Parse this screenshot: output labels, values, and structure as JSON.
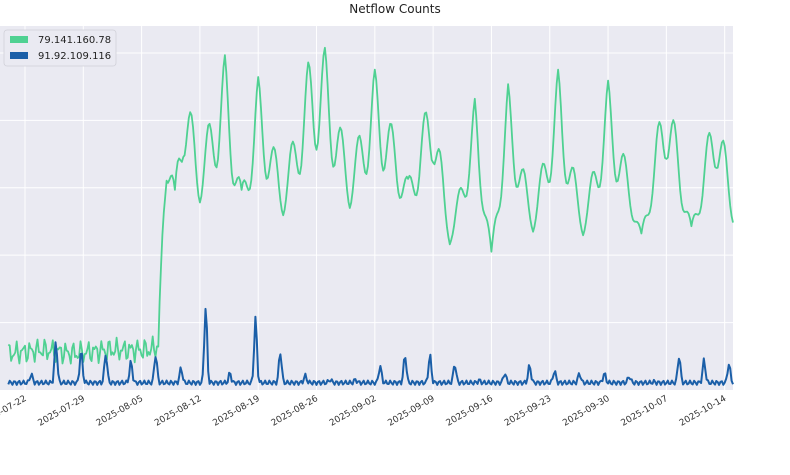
{
  "chart_data": {
    "type": "line",
    "title": "Netflow Counts",
    "xlabel": "",
    "ylabel": "",
    "x_range": [
      "2025-07-19",
      "2025-10-15"
    ],
    "ylim": [
      0,
      1
    ],
    "y_tick_labels_shown": false,
    "grid": true,
    "legend": "top-left",
    "x_tick_labels": [
      "2025-07-22",
      "2025-07-29",
      "2025-08-05",
      "2025-08-12",
      "2025-08-19",
      "2025-08-26",
      "2025-09-02",
      "2025-09-09",
      "2025-09-16",
      "2025-09-23",
      "2025-09-30",
      "2025-10-07",
      "2025-10-14"
    ],
    "series": [
      {
        "name": "79.141.160.78",
        "color": "#4fd192",
        "points": [
          [
            "2025-07-20",
            0.1
          ],
          [
            "2025-07-24",
            0.11
          ],
          [
            "2025-07-28",
            0.1
          ],
          [
            "2025-08-01",
            0.11
          ],
          [
            "2025-08-06",
            0.11
          ],
          [
            "2025-08-07",
            0.12
          ],
          [
            "2025-08-08",
            0.75
          ],
          [
            "2025-08-09",
            0.55
          ],
          [
            "2025-08-10",
            0.88
          ],
          [
            "2025-08-12",
            0.63
          ],
          [
            "2025-08-15",
            0.92
          ],
          [
            "2025-08-17",
            0.55
          ],
          [
            "2025-08-19",
            0.86
          ],
          [
            "2025-08-22",
            0.56
          ],
          [
            "2025-08-25",
            0.9
          ],
          [
            "2025-08-27",
            0.94
          ],
          [
            "2025-08-30",
            0.6
          ],
          [
            "2025-09-02",
            0.88
          ],
          [
            "2025-09-06",
            0.58
          ],
          [
            "2025-09-09",
            0.85
          ],
          [
            "2025-09-11",
            0.4
          ],
          [
            "2025-09-14",
            0.8
          ],
          [
            "2025-09-16",
            0.38
          ],
          [
            "2025-09-18",
            0.84
          ],
          [
            "2025-09-21",
            0.47
          ],
          [
            "2025-09-24",
            0.88
          ],
          [
            "2025-09-27",
            0.45
          ],
          [
            "2025-09-30",
            0.85
          ],
          [
            "2025-10-04",
            0.43
          ],
          [
            "2025-10-07",
            0.87
          ],
          [
            "2025-10-10",
            0.45
          ],
          [
            "2025-10-13",
            0.82
          ],
          [
            "2025-10-15",
            0.52
          ]
        ]
      },
      {
        "name": "91.92.109.116",
        "color": "#1b5fa8",
        "points": [
          [
            "2025-07-20",
            0.02
          ],
          [
            "2025-07-23",
            0.03
          ],
          [
            "2025-07-25",
            0.09
          ],
          [
            "2025-07-27",
            0.02
          ],
          [
            "2025-07-30",
            0.08
          ],
          [
            "2025-08-02",
            0.03
          ],
          [
            "2025-08-06",
            0.06
          ],
          [
            "2025-08-09",
            0.02
          ],
          [
            "2025-08-13",
            0.11
          ],
          [
            "2025-08-16",
            0.02
          ],
          [
            "2025-08-19",
            0.1
          ],
          [
            "2025-08-23",
            0.03
          ],
          [
            "2025-08-30",
            0.02
          ],
          [
            "2025-09-05",
            0.05
          ],
          [
            "2025-09-10",
            0.05
          ],
          [
            "2025-09-15",
            0.02
          ],
          [
            "2025-09-20",
            0.04
          ],
          [
            "2025-09-25",
            0.03
          ],
          [
            "2025-10-01",
            0.03
          ],
          [
            "2025-10-06",
            0.02
          ],
          [
            "2025-10-08",
            0.05
          ],
          [
            "2025-10-15",
            0.04
          ]
        ]
      }
    ]
  }
}
